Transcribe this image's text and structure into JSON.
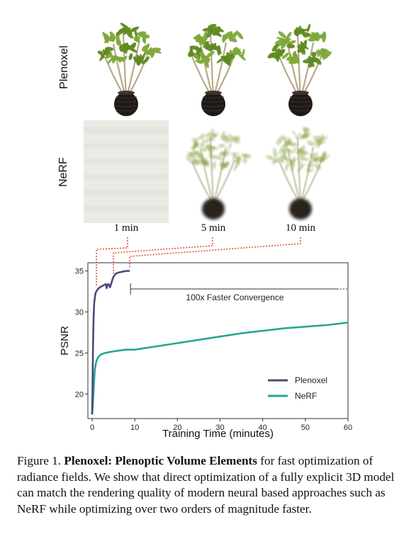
{
  "rows": [
    {
      "label": "Plenoxel",
      "kind": "plenoxel"
    },
    {
      "label": "NeRF",
      "kind": "nerf"
    }
  ],
  "times": [
    "1 min",
    "5 min",
    "10 min"
  ],
  "chart_data": {
    "type": "line",
    "xlabel": "Training Time (minutes)",
    "ylabel": "PSNR",
    "xlim": [
      -1,
      60
    ],
    "ylim": [
      17,
      36
    ],
    "xticks": [
      0,
      10,
      20,
      30,
      40,
      50,
      60
    ],
    "yticks": [
      20,
      25,
      30,
      35
    ],
    "grid": false,
    "legend_position": "bottom-right",
    "annotation": "100x Faster Convergence",
    "colors": {
      "plenoxel": "#4b4a7e",
      "nerf": "#24a890",
      "dotted": "#e0533a"
    },
    "series": [
      {
        "name": "Plenoxel",
        "x": [
          0,
          0.1,
          0.2,
          0.35,
          0.5,
          0.8,
          1.2,
          1.8,
          2.5,
          3.2,
          3.4,
          3.7,
          4.0,
          4.2,
          4.5,
          4.8,
          5.0,
          5.3,
          5.6,
          6.2,
          7.0,
          8.0,
          8.8
        ],
        "y": [
          17.5,
          21.0,
          25.5,
          29.5,
          31.2,
          32.3,
          32.7,
          33.0,
          33.2,
          33.4,
          32.9,
          33.4,
          33.3,
          33.0,
          33.5,
          34.0,
          34.3,
          34.5,
          34.7,
          34.8,
          34.9,
          35.0,
          35.0
        ]
      },
      {
        "name": "NeRF",
        "x": [
          0,
          0.2,
          0.4,
          0.6,
          0.9,
          1.3,
          2,
          3,
          5,
          8,
          10,
          15,
          20,
          25,
          30,
          35,
          40,
          45,
          50,
          55,
          60
        ],
        "y": [
          17.5,
          19.0,
          21.0,
          22.8,
          23.8,
          24.4,
          24.8,
          25.0,
          25.2,
          25.4,
          25.4,
          25.8,
          26.2,
          26.6,
          27.0,
          27.4,
          27.7,
          28.0,
          28.2,
          28.4,
          28.7
        ]
      }
    ]
  },
  "caption": {
    "figure_label": "Figure 1. ",
    "bold": "Plenoxel: Plenoptic Volume Elements",
    "rest": " for fast optimization of radiance fields. We show that direct optimization of a fully explicit 3D model can match the rendering quality of modern neural based approaches such as NeRF while optimizing over two orders of magnitude faster."
  }
}
